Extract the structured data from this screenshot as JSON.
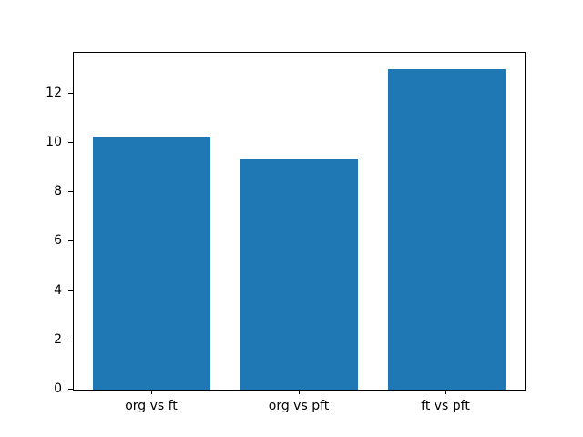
{
  "chart_data": {
    "type": "bar",
    "categories": [
      "org vs ft",
      "org vs pft",
      "ft vs pft"
    ],
    "values": [
      10.25,
      9.35,
      13.0
    ],
    "title": "",
    "xlabel": "",
    "ylabel": "",
    "ylim": [
      0,
      13.65
    ],
    "xlim": [
      -0.53,
      2.53
    ],
    "yticks": [
      0,
      2,
      4,
      6,
      8,
      10,
      12
    ],
    "bar_width_fraction": 0.8,
    "bar_color": "#1f77b4",
    "spine_color": "#000000",
    "background_color": "#ffffff",
    "grid": "off",
    "legend": "none"
  }
}
